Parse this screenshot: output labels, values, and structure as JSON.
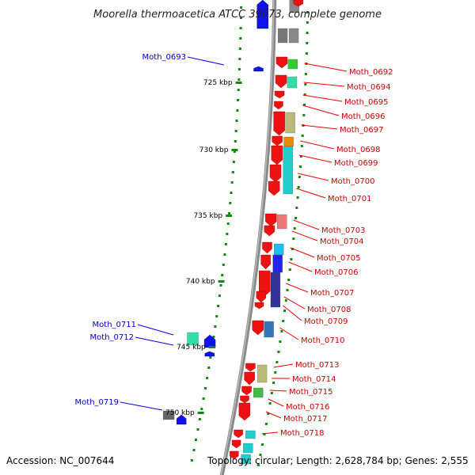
{
  "title": "Moorella thermoacetica ATCC 39073, complete genome",
  "footer": {
    "accession": "Accession: NC_007644",
    "summary": "Topology: circular; Length: 2,628,784 bp; Genes: 2,555"
  },
  "scale_labels": [
    "725 kbp",
    "730 kbp",
    "735 kbp",
    "740 kbp",
    "745 kbp",
    "750 kbp"
  ],
  "forward_genes": [
    "Moth_0692",
    "Moth_0694",
    "Moth_0695",
    "Moth_0696",
    "Moth_0697",
    "Moth_0698",
    "Moth_0699",
    "Moth_0700",
    "Moth_0701",
    "Moth_0703",
    "Moth_0704",
    "Moth_0705",
    "Moth_0706",
    "Moth_0707",
    "Moth_0708",
    "Moth_0709",
    "Moth_0710",
    "Moth_0713",
    "Moth_0714",
    "Moth_0715",
    "Moth_0716",
    "Moth_0717",
    "Moth_0718"
  ],
  "reverse_genes": [
    "Moth_0693",
    "Moth_0711",
    "Moth_0712",
    "Moth_0719"
  ],
  "colors": {
    "forward_strand": "#ee1111",
    "reverse_strand": "#1111ee",
    "forward_label": "#cc0000",
    "reverse_label": "#0000cc",
    "backbone": "#888888",
    "gc_dots": "#118811"
  }
}
